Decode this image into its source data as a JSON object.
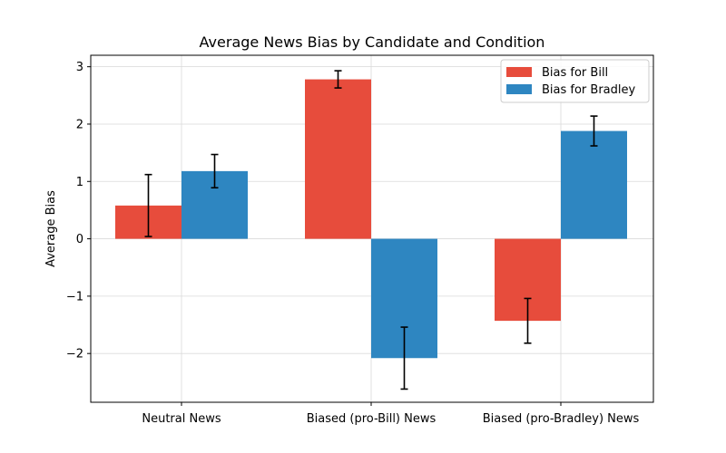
{
  "chart_data": {
    "type": "bar",
    "title": "Average News Bias by Candidate and Condition",
    "xlabel": "",
    "ylabel": "Average Bias",
    "categories": [
      "Neutral News",
      "Biased (pro-Bill) News",
      "Biased (pro-Bradley) News"
    ],
    "series": [
      {
        "name": "Bias for Bill",
        "color": "#e74c3c",
        "values": [
          0.58,
          2.78,
          -1.43
        ],
        "errors": [
          0.54,
          0.15,
          0.39
        ]
      },
      {
        "name": "Bias for Bradley",
        "color": "#2e86c1",
        "values": [
          1.18,
          -2.08,
          1.88
        ],
        "errors": [
          0.29,
          0.54,
          0.26
        ]
      }
    ],
    "ylim": [
      -2.85,
      3.2
    ],
    "yticks": [
      -2,
      -1,
      0,
      1,
      2,
      3
    ],
    "ytick_labels": [
      "−2",
      "−1",
      "0",
      "1",
      "2",
      "3"
    ],
    "grid": true,
    "legend_position": "top-right"
  }
}
